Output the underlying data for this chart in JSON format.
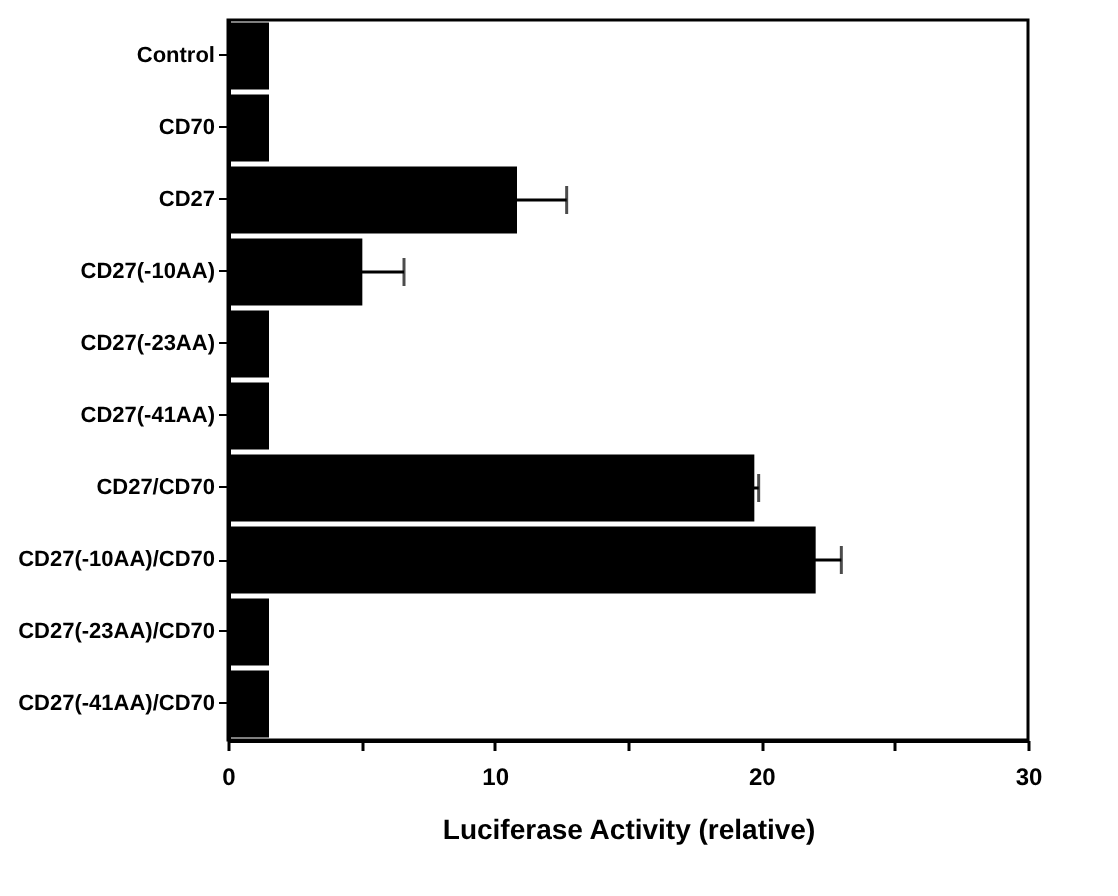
{
  "chart_data": {
    "type": "bar",
    "orientation": "horizontal",
    "xlabel": "Luciferase Activity (relative)",
    "categories": [
      "Control",
      "CD70",
      "CD27",
      "CD27(-10AA)",
      "CD27(-23AA)",
      "CD27(-41AA)",
      "CD27/CD70",
      "CD27(-10AA)/CD70",
      "CD27(-23AA)/CD70",
      "CD27(-41AA)/CD70"
    ],
    "values": [
      1.5,
      1.5,
      10.8,
      5.0,
      1.5,
      1.5,
      19.7,
      22.0,
      1.5,
      1.5
    ],
    "errors": [
      null,
      null,
      [
        10.8,
        12.7
      ],
      [
        5.0,
        6.6
      ],
      null,
      null,
      [
        19.7,
        19.9
      ],
      [
        22.0,
        23.0
      ],
      null,
      null
    ],
    "color": "#000000",
    "xlim": [
      0,
      30
    ],
    "xticks": [
      0,
      {
        "value": 5,
        "label": null
      },
      10,
      {
        "value": 15,
        "label": null
      },
      20,
      {
        "value": 25,
        "label": null
      },
      30
    ],
    "grid": false
  }
}
